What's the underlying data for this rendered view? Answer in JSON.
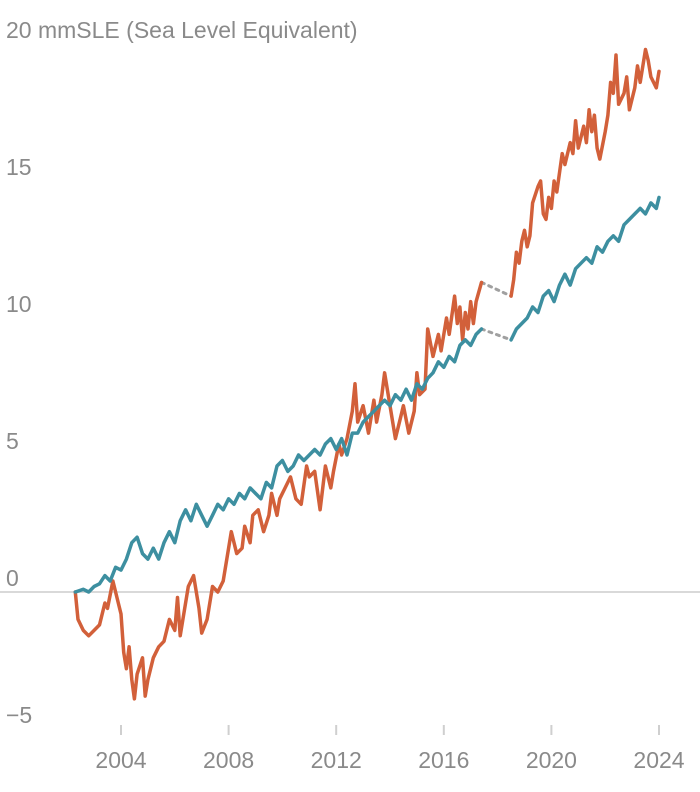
{
  "chart_data": {
    "type": "line",
    "title": "",
    "ylabel": "mmSLE (Sea Level Equivalent)",
    "xlabel": "",
    "xlim": [
      2002.2,
      2024.7
    ],
    "ylim": [
      -5.5,
      21
    ],
    "xticks": [
      2004,
      2008,
      2012,
      2016,
      2020,
      2024
    ],
    "xtick_labels": [
      "2004",
      "2008",
      "2012",
      "2016",
      "2020",
      "2024"
    ],
    "yticks": [
      -5,
      0,
      5,
      10,
      15,
      20
    ],
    "ytick_labels": [
      "−5",
      "0",
      "5",
      "10",
      "15",
      "20"
    ],
    "ytop_label": "20  mmSLE (Sea Level Equivalent)",
    "grid": false,
    "zero_line": true,
    "colors": {
      "series_a": "#d2603a",
      "series_b": "#3d8fa0",
      "gap": "#a0a0a0",
      "axis": "#d9d9d9",
      "text": "#8a8a8a"
    },
    "series": [
      {
        "color": "#d2603a",
        "segments": [
          [
            [
              2002.3,
              0.0
            ],
            [
              2002.4,
              -1.0
            ],
            [
              2002.6,
              -1.4
            ],
            [
              2002.8,
              -1.6
            ],
            [
              2003.0,
              -1.4
            ],
            [
              2003.2,
              -1.2
            ],
            [
              2003.4,
              -0.4
            ],
            [
              2003.5,
              -0.6
            ],
            [
              2003.7,
              0.4
            ],
            [
              2003.9,
              -0.4
            ],
            [
              2004.0,
              -0.8
            ],
            [
              2004.1,
              -2.2
            ],
            [
              2004.2,
              -2.8
            ],
            [
              2004.3,
              -2.0
            ],
            [
              2004.4,
              -3.2
            ],
            [
              2004.5,
              -3.9
            ],
            [
              2004.6,
              -3.0
            ],
            [
              2004.8,
              -2.4
            ],
            [
              2004.9,
              -3.8
            ],
            [
              2005.0,
              -3.2
            ],
            [
              2005.2,
              -2.4
            ],
            [
              2005.4,
              -2.0
            ],
            [
              2005.6,
              -1.8
            ],
            [
              2005.8,
              -1.0
            ],
            [
              2006.0,
              -1.4
            ],
            [
              2006.1,
              -0.2
            ],
            [
              2006.2,
              -1.6
            ],
            [
              2006.3,
              -1.0
            ],
            [
              2006.5,
              0.2
            ],
            [
              2006.7,
              0.6
            ],
            [
              2006.9,
              -0.6
            ],
            [
              2007.0,
              -1.5
            ],
            [
              2007.2,
              -1.0
            ],
            [
              2007.4,
              0.2
            ],
            [
              2007.6,
              0.0
            ],
            [
              2007.8,
              0.4
            ],
            [
              2008.0,
              1.6
            ],
            [
              2008.1,
              2.2
            ],
            [
              2008.3,
              1.4
            ],
            [
              2008.5,
              1.6
            ],
            [
              2008.6,
              2.4
            ],
            [
              2008.8,
              1.8
            ],
            [
              2008.9,
              2.8
            ],
            [
              2009.1,
              3.0
            ],
            [
              2009.3,
              2.2
            ],
            [
              2009.5,
              2.8
            ],
            [
              2009.6,
              3.6
            ],
            [
              2009.8,
              2.8
            ],
            [
              2009.9,
              3.4
            ],
            [
              2010.1,
              3.8
            ],
            [
              2010.3,
              4.2
            ],
            [
              2010.5,
              3.4
            ],
            [
              2010.7,
              3.2
            ],
            [
              2010.9,
              4.6
            ],
            [
              2011.0,
              4.2
            ],
            [
              2011.2,
              4.4
            ],
            [
              2011.4,
              3.0
            ],
            [
              2011.6,
              4.6
            ],
            [
              2011.8,
              3.8
            ],
            [
              2011.9,
              4.4
            ],
            [
              2012.1,
              5.4
            ],
            [
              2012.2,
              5.0
            ],
            [
              2012.4,
              5.6
            ],
            [
              2012.6,
              6.6
            ],
            [
              2012.7,
              7.6
            ],
            [
              2012.8,
              6.2
            ],
            [
              2013.0,
              6.8
            ],
            [
              2013.2,
              5.8
            ],
            [
              2013.4,
              7.0
            ],
            [
              2013.5,
              6.2
            ],
            [
              2013.7,
              7.2
            ],
            [
              2013.8,
              8.0
            ],
            [
              2014.0,
              6.8
            ],
            [
              2014.2,
              5.6
            ],
            [
              2014.4,
              6.4
            ],
            [
              2014.5,
              6.8
            ],
            [
              2014.7,
              5.8
            ],
            [
              2014.9,
              6.6
            ],
            [
              2015.0,
              8.0
            ],
            [
              2015.1,
              7.2
            ],
            [
              2015.3,
              7.4
            ],
            [
              2015.4,
              9.6
            ],
            [
              2015.6,
              8.6
            ],
            [
              2015.8,
              9.4
            ],
            [
              2015.9,
              8.8
            ],
            [
              2016.1,
              10.0
            ],
            [
              2016.2,
              9.4
            ],
            [
              2016.4,
              10.8
            ],
            [
              2016.5,
              9.8
            ],
            [
              2016.6,
              10.4
            ],
            [
              2016.7,
              9.2
            ],
            [
              2016.8,
              10.2
            ],
            [
              2016.9,
              9.6
            ],
            [
              2017.0,
              10.6
            ],
            [
              2017.1,
              9.8
            ],
            [
              2017.2,
              10.6
            ],
            [
              2017.4,
              11.3
            ]
          ],
          [
            [
              2018.5,
              10.8
            ],
            [
              2018.6,
              11.4
            ],
            [
              2018.7,
              12.4
            ],
            [
              2018.8,
              12.0
            ],
            [
              2018.9,
              12.8
            ],
            [
              2019.0,
              13.2
            ],
            [
              2019.1,
              12.6
            ],
            [
              2019.2,
              13.0
            ],
            [
              2019.3,
              14.2
            ],
            [
              2019.5,
              14.8
            ],
            [
              2019.6,
              15.0
            ],
            [
              2019.7,
              13.8
            ],
            [
              2019.8,
              13.6
            ],
            [
              2019.9,
              14.4
            ],
            [
              2020.0,
              14.0
            ],
            [
              2020.1,
              15.0
            ],
            [
              2020.2,
              14.6
            ],
            [
              2020.4,
              16.0
            ],
            [
              2020.5,
              15.6
            ],
            [
              2020.7,
              16.4
            ],
            [
              2020.8,
              16.0
            ],
            [
              2020.9,
              17.2
            ],
            [
              2021.0,
              16.2
            ],
            [
              2021.2,
              17.0
            ],
            [
              2021.3,
              16.4
            ],
            [
              2021.4,
              17.6
            ],
            [
              2021.5,
              16.8
            ],
            [
              2021.6,
              17.4
            ],
            [
              2021.7,
              16.2
            ],
            [
              2021.8,
              15.8
            ],
            [
              2022.0,
              16.8
            ],
            [
              2022.1,
              17.4
            ],
            [
              2022.2,
              18.6
            ],
            [
              2022.3,
              18.2
            ],
            [
              2022.4,
              19.6
            ],
            [
              2022.5,
              17.8
            ],
            [
              2022.7,
              18.2
            ],
            [
              2022.8,
              18.8
            ],
            [
              2022.9,
              17.6
            ],
            [
              2023.1,
              18.4
            ],
            [
              2023.2,
              19.2
            ],
            [
              2023.3,
              18.6
            ],
            [
              2023.5,
              19.8
            ],
            [
              2023.6,
              19.4
            ],
            [
              2023.7,
              18.8
            ],
            [
              2023.9,
              18.4
            ],
            [
              2024.0,
              19.0
            ]
          ]
        ]
      },
      {
        "color": "#3d8fa0",
        "segments": [
          [
            [
              2002.3,
              0.0
            ],
            [
              2002.6,
              0.1
            ],
            [
              2002.8,
              0.0
            ],
            [
              2003.0,
              0.2
            ],
            [
              2003.2,
              0.3
            ],
            [
              2003.4,
              0.6
            ],
            [
              2003.6,
              0.4
            ],
            [
              2003.8,
              0.9
            ],
            [
              2004.0,
              0.8
            ],
            [
              2004.2,
              1.2
            ],
            [
              2004.4,
              1.8
            ],
            [
              2004.6,
              2.0
            ],
            [
              2004.8,
              1.4
            ],
            [
              2005.0,
              1.2
            ],
            [
              2005.2,
              1.6
            ],
            [
              2005.4,
              1.2
            ],
            [
              2005.6,
              1.8
            ],
            [
              2005.8,
              2.2
            ],
            [
              2006.0,
              1.8
            ],
            [
              2006.2,
              2.6
            ],
            [
              2006.4,
              3.0
            ],
            [
              2006.6,
              2.6
            ],
            [
              2006.8,
              3.2
            ],
            [
              2007.0,
              2.8
            ],
            [
              2007.2,
              2.4
            ],
            [
              2007.4,
              2.8
            ],
            [
              2007.6,
              3.2
            ],
            [
              2007.8,
              3.0
            ],
            [
              2008.0,
              3.4
            ],
            [
              2008.2,
              3.2
            ],
            [
              2008.4,
              3.6
            ],
            [
              2008.6,
              3.4
            ],
            [
              2008.8,
              3.8
            ],
            [
              2009.0,
              3.6
            ],
            [
              2009.2,
              3.4
            ],
            [
              2009.4,
              4.0
            ],
            [
              2009.6,
              3.8
            ],
            [
              2009.8,
              4.6
            ],
            [
              2010.0,
              4.8
            ],
            [
              2010.2,
              4.4
            ],
            [
              2010.4,
              4.6
            ],
            [
              2010.6,
              5.0
            ],
            [
              2010.8,
              4.8
            ],
            [
              2011.0,
              5.0
            ],
            [
              2011.2,
              5.2
            ],
            [
              2011.4,
              5.0
            ],
            [
              2011.6,
              5.4
            ],
            [
              2011.8,
              5.6
            ],
            [
              2012.0,
              5.2
            ],
            [
              2012.2,
              5.6
            ],
            [
              2012.4,
              5.0
            ],
            [
              2012.6,
              5.8
            ],
            [
              2012.8,
              5.8
            ],
            [
              2013.0,
              6.2
            ],
            [
              2013.2,
              6.4
            ],
            [
              2013.4,
              6.6
            ],
            [
              2013.6,
              6.8
            ],
            [
              2013.8,
              7.0
            ],
            [
              2014.0,
              6.8
            ],
            [
              2014.2,
              7.2
            ],
            [
              2014.4,
              7.0
            ],
            [
              2014.6,
              7.4
            ],
            [
              2014.8,
              7.0
            ],
            [
              2015.0,
              7.6
            ],
            [
              2015.2,
              7.4
            ],
            [
              2015.4,
              7.8
            ],
            [
              2015.6,
              8.0
            ],
            [
              2015.8,
              8.4
            ],
            [
              2016.0,
              8.2
            ],
            [
              2016.2,
              8.6
            ],
            [
              2016.4,
              8.4
            ],
            [
              2016.6,
              9.0
            ],
            [
              2016.8,
              9.2
            ],
            [
              2017.0,
              9.0
            ],
            [
              2017.2,
              9.4
            ],
            [
              2017.4,
              9.6
            ]
          ],
          [
            [
              2018.5,
              9.2
            ],
            [
              2018.7,
              9.6
            ],
            [
              2018.9,
              9.8
            ],
            [
              2019.1,
              10.0
            ],
            [
              2019.3,
              10.4
            ],
            [
              2019.5,
              10.2
            ],
            [
              2019.7,
              10.8
            ],
            [
              2019.9,
              11.0
            ],
            [
              2020.1,
              10.6
            ],
            [
              2020.3,
              11.2
            ],
            [
              2020.5,
              11.6
            ],
            [
              2020.7,
              11.2
            ],
            [
              2020.9,
              11.8
            ],
            [
              2021.1,
              12.0
            ],
            [
              2021.3,
              12.2
            ],
            [
              2021.5,
              12.0
            ],
            [
              2021.7,
              12.6
            ],
            [
              2021.9,
              12.4
            ],
            [
              2022.1,
              12.8
            ],
            [
              2022.3,
              13.0
            ],
            [
              2022.5,
              12.8
            ],
            [
              2022.7,
              13.4
            ],
            [
              2022.9,
              13.6
            ],
            [
              2023.1,
              13.8
            ],
            [
              2023.3,
              14.0
            ],
            [
              2023.5,
              13.8
            ],
            [
              2023.7,
              14.2
            ],
            [
              2023.9,
              14.0
            ],
            [
              2024.0,
              14.4
            ]
          ]
        ]
      }
    ],
    "gaps": [
      {
        "from": [
          2017.4,
          11.3
        ],
        "to": [
          2018.5,
          10.8
        ]
      },
      {
        "from": [
          2017.4,
          9.6
        ],
        "to": [
          2018.5,
          9.2
        ]
      }
    ]
  }
}
